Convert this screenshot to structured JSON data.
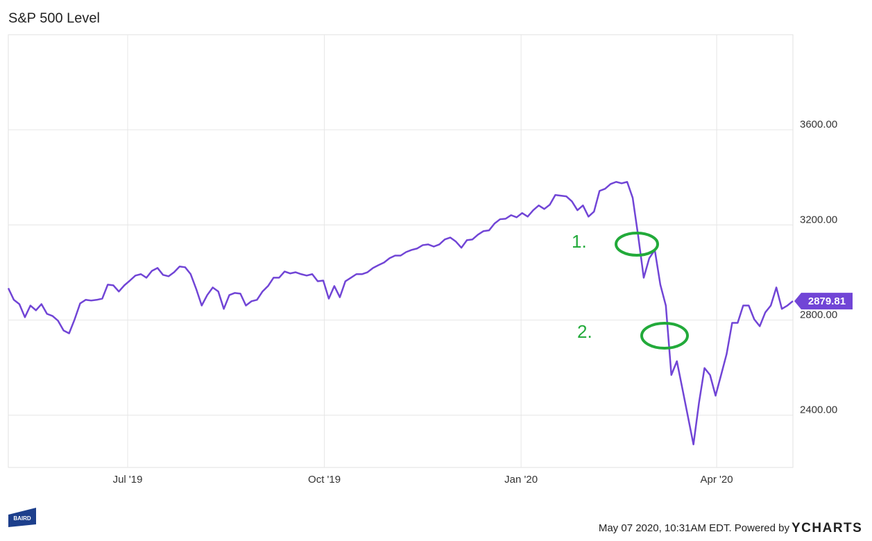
{
  "chart_data": {
    "type": "line",
    "title": "S&P 500 Level",
    "series": [
      {
        "name": "S&P 500 Level",
        "color": "#7145d6",
        "values": [
          2934,
          2885,
          2867,
          2812,
          2861,
          2841,
          2867,
          2826,
          2817,
          2797,
          2756,
          2744,
          2803,
          2870,
          2885,
          2882,
          2885,
          2890,
          2949,
          2946,
          2920,
          2946,
          2966,
          2987,
          2993,
          2978,
          3007,
          3019,
          2990,
          2984,
          3001,
          3025,
          3022,
          2993,
          2931,
          2861,
          2905,
          2937,
          2920,
          2847,
          2905,
          2914,
          2911,
          2861,
          2879,
          2885,
          2920,
          2943,
          2978,
          2978,
          3004,
          2996,
          3001,
          2993,
          2987,
          2993,
          2963,
          2966,
          2890,
          2943,
          2896,
          2963,
          2978,
          2993,
          2993,
          3001,
          3019,
          3031,
          3042,
          3060,
          3071,
          3071,
          3086,
          3095,
          3101,
          3115,
          3118,
          3109,
          3118,
          3139,
          3147,
          3130,
          3104,
          3136,
          3139,
          3159,
          3174,
          3177,
          3206,
          3224,
          3226,
          3241,
          3232,
          3250,
          3235,
          3262,
          3282,
          3267,
          3285,
          3326,
          3323,
          3320,
          3299,
          3262,
          3282,
          3235,
          3256,
          3343,
          3352,
          3372,
          3381,
          3375,
          3381,
          3314,
          3153,
          2978,
          3060,
          3095,
          2949,
          2861,
          2569,
          2627,
          2511,
          2394,
          2277,
          2452,
          2598,
          2569,
          2482,
          2569,
          2657,
          2788,
          2788,
          2861,
          2861,
          2803,
          2774,
          2832,
          2861,
          2937,
          2847,
          2861,
          2879.81
        ]
      }
    ],
    "xlim": [
      0,
      142
    ],
    "xticks": [
      {
        "value": 21.6,
        "label": "Jul '19"
      },
      {
        "value": 57.2,
        "label": "Oct '19"
      },
      {
        "value": 92.8,
        "label": "Jan '20"
      },
      {
        "value": 128.2,
        "label": "Apr '20"
      }
    ],
    "ylim": [
      2180,
      4000
    ],
    "yticks": [
      {
        "value": 2400,
        "label": "2400.00"
      },
      {
        "value": 2800,
        "label": "2800.00"
      },
      {
        "value": 3200,
        "label": "3200.00"
      },
      {
        "value": 3600,
        "label": "3600.00"
      }
    ],
    "grid": true,
    "annotations": [
      "1.",
      "2."
    ],
    "footer": {
      "timestamp": "May 07 2020, 10:31AM EDT. Powered by",
      "brand": "YCHARTS",
      "logo": "BAIRD"
    }
  }
}
